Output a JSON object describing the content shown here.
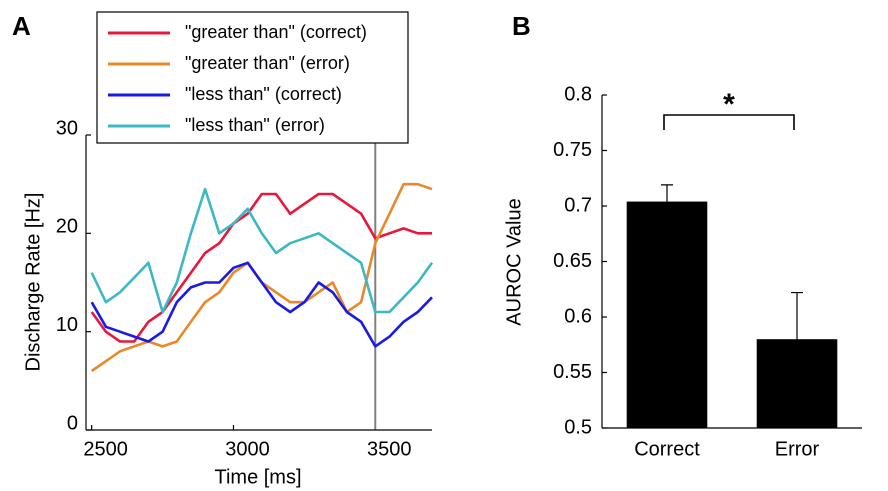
{
  "chart_data": [
    {
      "type": "line",
      "panel_label": "A",
      "xlabel": "Time [ms]",
      "ylabel": "Discharge Rate [Hz]",
      "x": [
        2500,
        2550,
        2600,
        2650,
        2700,
        2750,
        2800,
        2850,
        2900,
        2950,
        3000,
        3050,
        3100,
        3150,
        3200,
        3250,
        3300,
        3350,
        3400,
        3450,
        3500,
        3550,
        3600,
        3650,
        3700
      ],
      "series": [
        {
          "name": "\"greater than\" (correct)",
          "color": "#e8183c",
          "values": [
            12,
            10,
            9,
            9,
            11,
            12,
            14,
            16,
            18,
            19,
            21,
            22,
            24,
            24,
            22,
            23,
            24,
            24,
            23,
            22,
            19.5,
            20,
            20.5,
            20,
            20
          ]
        },
        {
          "name": "\"greater than\" (error)",
          "color": "#e8892a",
          "values": [
            6,
            7,
            8,
            8.5,
            9,
            8.5,
            9,
            11,
            13,
            14,
            16,
            17,
            15,
            14,
            13,
            13,
            14,
            15,
            12,
            13,
            19,
            22,
            25,
            25,
            24.5
          ]
        },
        {
          "name": "\"less than\" (correct)",
          "color": "#1a1ae6",
          "values": [
            13,
            10.5,
            10,
            9.5,
            9,
            10,
            13,
            14.5,
            15,
            15,
            16.5,
            17,
            15,
            13,
            12,
            13,
            15,
            14,
            12,
            11,
            8.5,
            9.5,
            11,
            12,
            13.5
          ]
        },
        {
          "name": "\"less than\" (error)",
          "color": "#3cb8c4",
          "values": [
            16,
            13,
            14,
            15.5,
            17,
            12,
            15,
            20,
            24.5,
            20,
            21,
            22.5,
            20,
            18,
            19,
            19.5,
            20,
            19,
            18,
            17,
            12,
            12,
            13.5,
            15,
            17
          ]
        }
      ],
      "xlim": [
        2480,
        3700
      ],
      "ylim": [
        0,
        30
      ],
      "xticks": [
        2500,
        3000,
        3500
      ],
      "yticks": [
        0,
        10,
        20,
        30
      ],
      "vline": 3500,
      "vline_color": "#808080"
    },
    {
      "type": "bar",
      "panel_label": "B",
      "ylabel": "AUROC Value",
      "categories": [
        "Correct",
        "Error"
      ],
      "values": [
        0.704,
        0.58
      ],
      "errors": [
        0.015,
        0.042
      ],
      "color": "#000000",
      "ylim": [
        0.5,
        0.8
      ],
      "yticks": [
        0.5,
        0.55,
        0.6,
        0.65,
        0.7,
        0.75,
        0.8
      ],
      "annotation": "*"
    }
  ]
}
